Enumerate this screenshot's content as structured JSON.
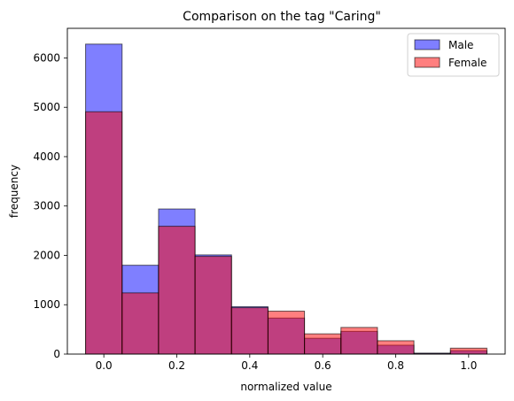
{
  "chart_data": {
    "type": "bar",
    "title": "Comparison on the tag \"Caring\"",
    "xlabel": "normalized value",
    "ylabel": "frequency",
    "xlim": [
      -0.1,
      1.1
    ],
    "ylim": [
      0,
      6600
    ],
    "xticks": [
      0.0,
      0.2,
      0.4,
      0.6,
      0.8,
      1.0
    ],
    "xtick_labels": [
      "0.0",
      "0.2",
      "0.4",
      "0.6",
      "0.8",
      "1.0"
    ],
    "yticks": [
      0,
      1000,
      2000,
      3000,
      4000,
      5000,
      6000
    ],
    "ytick_labels": [
      "0",
      "1000",
      "2000",
      "3000",
      "4000",
      "5000",
      "6000"
    ],
    "bin_edges": [
      -0.05,
      0.05,
      0.15,
      0.25,
      0.35,
      0.45,
      0.55,
      0.65,
      0.75,
      0.85,
      0.95,
      1.05
    ],
    "legend_position": "top-right",
    "series": [
      {
        "name": "Male",
        "color": "#0000ff",
        "opacity": 0.5,
        "values": [
          6280,
          1800,
          2940,
          2010,
          960,
          730,
          320,
          460,
          180,
          20,
          70
        ]
      },
      {
        "name": "Female",
        "color": "#ff0000",
        "opacity": 0.5,
        "values": [
          4910,
          1240,
          2590,
          1980,
          940,
          870,
          410,
          540,
          270,
          10,
          120
        ]
      }
    ]
  }
}
